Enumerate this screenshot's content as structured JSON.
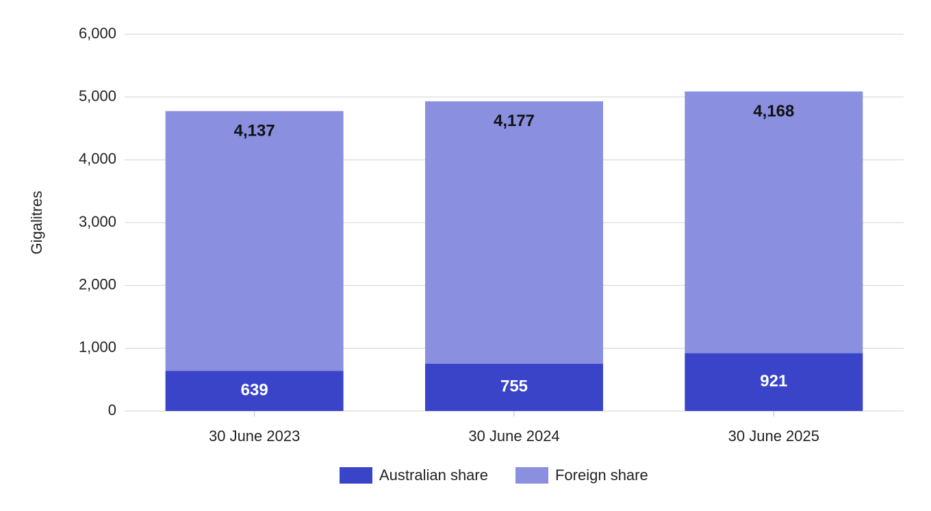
{
  "chart_data": {
    "type": "stacked_bar",
    "y_label": "Gigalitres",
    "categories": [
      "30 June 2023",
      "30 June 2024",
      "30 June 2025"
    ],
    "series": [
      {
        "name": "Australian share",
        "color": "#3944c9",
        "values": [
          639,
          755,
          921
        ]
      },
      {
        "name": "Foreign share",
        "color": "#8a8fe0",
        "values": [
          4137,
          4177,
          4168
        ],
        "value_labels": [
          "4,137",
          "4,177",
          "4,168"
        ]
      }
    ],
    "ylim": [
      0,
      6000
    ],
    "yticks": [
      0,
      {
        "value": 1000,
        "label": "1,000"
      },
      {
        "value": 2000,
        "label": "2,000"
      },
      {
        "value": 3000,
        "label": "3,000"
      },
      {
        "value": 4000,
        "label": "4,000"
      },
      {
        "value": 5000,
        "label": "5,000"
      },
      {
        "value": 6000,
        "label": "6,000"
      }
    ],
    "grid": true,
    "legend": "bottom"
  }
}
